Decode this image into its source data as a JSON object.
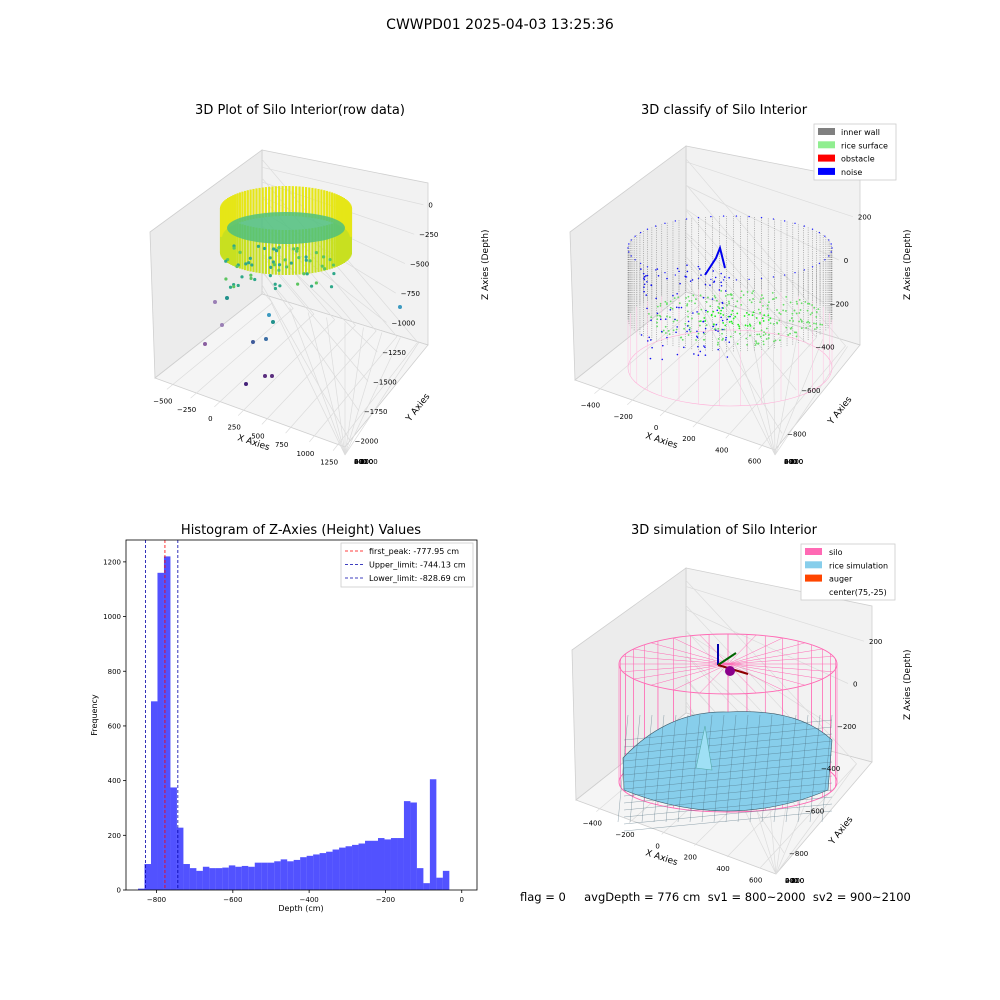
{
  "figure": {
    "suptitle": "CWWPD01 2025-04-03 13:25:36"
  },
  "raw_plot": {
    "title": "3D Plot of Silo Interior(row data)",
    "xlabel": "X Axies",
    "ylabel": "Y Axies",
    "zlabel": "Z Axies (Depth)",
    "x_ticks": [
      "−500",
      "−250",
      "0",
      "250",
      "500",
      "750",
      "1000",
      "1250"
    ],
    "y_ticks": [
      "600",
      "400",
      "200",
      "0",
      "−200",
      "−400",
      "−600",
      "−800",
      "−1000"
    ],
    "z_ticks": [
      "0",
      "−250",
      "−500",
      "−750",
      "−1000",
      "−1250",
      "−1500",
      "−1750",
      "−2000"
    ]
  },
  "classify_plot": {
    "title": "3D classify of Silo Interior",
    "xlabel": "X Axies",
    "ylabel": "Y Axies",
    "zlabel": "Z Axies (Depth)",
    "x_ticks": [
      "−400",
      "−200",
      "0",
      "200",
      "400",
      "600"
    ],
    "y_ticks": [
      "600",
      "400",
      "200",
      "0",
      "−200",
      "−400",
      "−600"
    ],
    "z_ticks": [
      "200",
      "0",
      "−200",
      "−400",
      "−600",
      "−800"
    ],
    "legend": [
      {
        "label": "inner wall",
        "color": "#808080"
      },
      {
        "label": "rice surface",
        "color": "#90ee90"
      },
      {
        "label": "obstacle",
        "color": "#ff0000"
      },
      {
        "label": "noise",
        "color": "#0000ff"
      }
    ]
  },
  "histogram": {
    "title": "Histogram of Z-Axies (Height) Values",
    "xlabel": "Depth (cm)",
    "ylabel": "Frequency",
    "x_ticks": [
      "−800",
      "−600",
      "−400",
      "−200",
      "0"
    ],
    "y_ticks": [
      "0",
      "200",
      "400",
      "600",
      "800",
      "1000",
      "1200"
    ],
    "legend": [
      {
        "label": "first_peak: -777.95 cm",
        "color": "#ff0000"
      },
      {
        "label": "Upper_limit: -744.13 cm",
        "color": "#0000aa"
      },
      {
        "label": "Lower_limit: -828.69 cm",
        "color": "#0000aa"
      }
    ]
  },
  "sim_plot": {
    "title": "3D simulation of Silo Interior",
    "xlabel": "X Axies",
    "ylabel": "Y Axies",
    "zlabel": "Z Axies (Depth)",
    "x_ticks": [
      "−400",
      "−200",
      "0",
      "200",
      "400",
      "600"
    ],
    "y_ticks": [
      "400",
      "200",
      "0",
      "−200",
      "−400",
      "−600"
    ],
    "z_ticks": [
      "200",
      "0",
      "−200",
      "−400",
      "−600",
      "−800"
    ],
    "legend": [
      {
        "label": "silo",
        "color": "#ff69b4"
      },
      {
        "label": "rice simulation",
        "color": "#87ceeb"
      },
      {
        "label": "auger",
        "color": "#ff4500"
      },
      {
        "label": "center(75,-25)",
        "color": ""
      }
    ]
  },
  "footer": {
    "text": "flag = 0     avgDepth = 776 cm  sv1 = 800~2000  sv2 = 900~2100"
  },
  "chart_data": [
    {
      "type": "scatter",
      "title": "3D Plot of Silo Interior(row data)",
      "xlabel": "X Axies",
      "ylabel": "Y Axies",
      "zlabel": "Z Axies (Depth)",
      "xlim": [
        -600,
        1350
      ],
      "ylim": [
        -1000,
        650
      ],
      "zlim": [
        -2150,
        100
      ]
    },
    {
      "type": "scatter",
      "title": "3D classify of Silo Interior",
      "xlabel": "X Axies",
      "ylabel": "Y Axies",
      "zlabel": "Z Axies (Depth)",
      "series": [
        {
          "name": "inner wall"
        },
        {
          "name": "rice surface"
        },
        {
          "name": "obstacle"
        },
        {
          "name": "noise"
        }
      ]
    },
    {
      "type": "bar",
      "title": "Histogram of Z-Axies (Height) Values",
      "xlabel": "Depth (cm)",
      "ylabel": "Frequency",
      "xlim": [
        -880,
        40
      ],
      "ylim": [
        0,
        1280
      ],
      "bin_start": -848.5,
      "bin_width": 17,
      "values": [
        5,
        95,
        690,
        1160,
        1220,
        375,
        228,
        95,
        80,
        70,
        85,
        80,
        80,
        82,
        90,
        85,
        88,
        85,
        100,
        100,
        100,
        105,
        112,
        105,
        110,
        120,
        125,
        130,
        135,
        140,
        148,
        155,
        160,
        165,
        170,
        180,
        180,
        190,
        185,
        190,
        190,
        325,
        320,
        80,
        25,
        405,
        45,
        70
      ],
      "vlines": [
        {
          "name": "first_peak",
          "x": -777.95
        },
        {
          "name": "Upper_limit",
          "x": -744.13
        },
        {
          "name": "Lower_limit",
          "x": -828.69
        }
      ]
    },
    {
      "type": "area",
      "title": "3D simulation of Silo Interior",
      "xlabel": "X Axies",
      "ylabel": "Y Axies",
      "zlabel": "Z Axies (Depth)",
      "series": [
        {
          "name": "silo"
        },
        {
          "name": "rice simulation"
        },
        {
          "name": "auger"
        }
      ]
    }
  ]
}
